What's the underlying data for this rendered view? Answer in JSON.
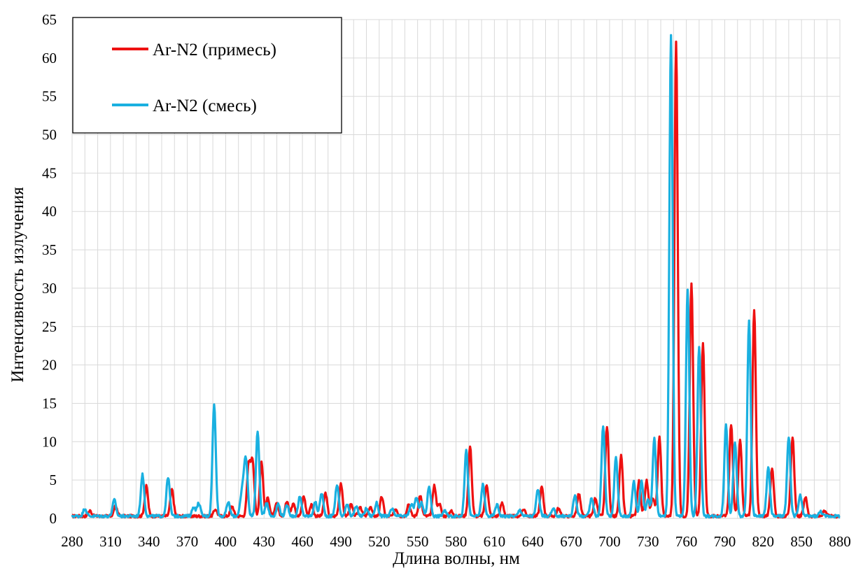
{
  "chart_data": {
    "type": "line",
    "title": "",
    "xlabel": "Длина волны, нм",
    "ylabel": "Интенсивность излучения",
    "xlim": [
      280,
      880
    ],
    "ylim": [
      0,
      65
    ],
    "x_ticks": [
      280,
      310,
      340,
      370,
      400,
      430,
      460,
      490,
      520,
      550,
      580,
      610,
      640,
      670,
      700,
      730,
      760,
      790,
      820,
      850,
      880
    ],
    "y_ticks": [
      0,
      5,
      10,
      15,
      20,
      25,
      30,
      35,
      40,
      45,
      50,
      55,
      60,
      65
    ],
    "x_minor_grid_step": 10,
    "grid": true,
    "legend": {
      "placement": "top-left"
    },
    "baseline": 0.3,
    "series": [
      {
        "name": "Ar-N2 (примесь)",
        "color": "#ee1111",
        "peaks": [
          [
            294,
            0.7
          ],
          [
            314,
            1.3
          ],
          [
            338,
            3.9
          ],
          [
            358,
            3.5
          ],
          [
            392,
            0.9
          ],
          [
            405,
            1.3
          ],
          [
            418,
            6.7
          ],
          [
            421,
            7.2
          ],
          [
            428,
            7.1
          ],
          [
            433,
            2.4
          ],
          [
            440,
            1.7
          ],
          [
            448,
            2.0
          ],
          [
            453,
            1.8
          ],
          [
            461,
            2.6
          ],
          [
            467,
            1.5
          ],
          [
            478,
            3.0
          ],
          [
            490,
            4.3
          ],
          [
            498,
            1.5
          ],
          [
            505,
            1.3
          ],
          [
            513,
            1.2
          ],
          [
            522,
            2.5
          ],
          [
            533,
            0.9
          ],
          [
            543,
            1.6
          ],
          [
            552,
            2.7
          ],
          [
            563,
            4.0
          ],
          [
            567,
            1.6
          ],
          [
            576,
            0.7
          ],
          [
            591,
            9.1
          ],
          [
            604,
            4.1
          ],
          [
            616,
            1.7
          ],
          [
            633,
            0.9
          ],
          [
            647,
            3.8
          ],
          [
            660,
            1.0
          ],
          [
            676,
            2.9
          ],
          [
            689,
            2.4
          ],
          [
            698,
            11.7
          ],
          [
            709,
            7.9
          ],
          [
            723,
            4.6
          ],
          [
            729,
            4.6
          ],
          [
            734,
            2.4
          ],
          [
            739,
            10.3
          ],
          [
            752,
            61.8
          ],
          [
            764,
            30.3
          ],
          [
            773,
            22.7
          ],
          [
            795,
            12.0
          ],
          [
            802,
            10.1
          ],
          [
            813,
            27.0
          ],
          [
            827,
            6.3
          ],
          [
            843,
            10.4
          ],
          [
            853,
            2.5
          ],
          [
            868,
            0.6
          ]
        ]
      },
      {
        "name": "Ar-N2 (смесь)",
        "color": "#1ab0e0",
        "peaks": [
          [
            290,
            1.0
          ],
          [
            313,
            2.1
          ],
          [
            335,
            5.4
          ],
          [
            355,
            5.1
          ],
          [
            375,
            1.2
          ],
          [
            379,
            1.7
          ],
          [
            391,
            14.5
          ],
          [
            402,
            1.8
          ],
          [
            412,
            1.7
          ],
          [
            414,
            3.1
          ],
          [
            416,
            6.6
          ],
          [
            425,
            11.0
          ],
          [
            432,
            1.8
          ],
          [
            441,
            1.6
          ],
          [
            448,
            1.4
          ],
          [
            458,
            2.5
          ],
          [
            470,
            1.8
          ],
          [
            475,
            3.0
          ],
          [
            487,
            4.1
          ],
          [
            495,
            1.6
          ],
          [
            502,
            1.2
          ],
          [
            510,
            1.0
          ],
          [
            518,
            1.7
          ],
          [
            530,
            0.9
          ],
          [
            545,
            1.5
          ],
          [
            549,
            2.4
          ],
          [
            553,
            1.7
          ],
          [
            559,
            3.9
          ],
          [
            571,
            0.7
          ],
          [
            588,
            8.6
          ],
          [
            601,
            4.1
          ],
          [
            612,
            1.5
          ],
          [
            630,
            0.8
          ],
          [
            644,
            3.5
          ],
          [
            656,
            0.9
          ],
          [
            673,
            2.7
          ],
          [
            686,
            2.4
          ],
          [
            695,
            11.8
          ],
          [
            705,
            7.6
          ],
          [
            719,
            4.5
          ],
          [
            725,
            4.6
          ],
          [
            730,
            2.2
          ],
          [
            735,
            10.2
          ],
          [
            748,
            62.5
          ],
          [
            761,
            29.5
          ],
          [
            770,
            22.2
          ],
          [
            791,
            12.0
          ],
          [
            798,
            9.7
          ],
          [
            809,
            25.5
          ],
          [
            824,
            6.4
          ],
          [
            840,
            10.3
          ],
          [
            849,
            2.7
          ],
          [
            865,
            0.6
          ]
        ]
      }
    ]
  }
}
